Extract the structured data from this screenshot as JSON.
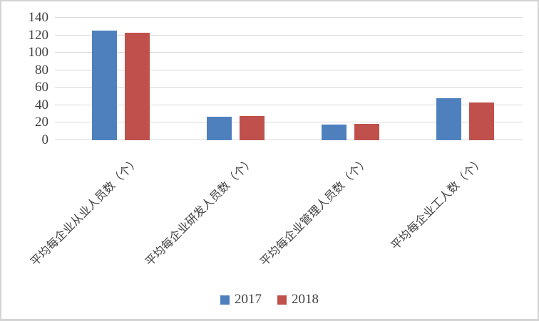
{
  "chart_data": {
    "type": "bar",
    "title": "",
    "xlabel": "",
    "ylabel": "",
    "categories": [
      "平均每企业从业人员数（个）",
      "平均每企业研发人员数（个）",
      "平均每企业管理人员数（个）",
      "平均每企业工人数（个）"
    ],
    "series": [
      {
        "name": "2017",
        "color": "#4E80BE",
        "values": [
          125,
          27,
          18,
          48
        ]
      },
      {
        "name": "2018",
        "color": "#BF504C",
        "values": [
          123,
          28,
          19,
          43
        ]
      }
    ],
    "ylim": [
      0,
      140
    ],
    "yticks": [
      0,
      20,
      40,
      60,
      80,
      100,
      120,
      140
    ],
    "grid": "horizontal",
    "gridline_color": "#D9D9D9",
    "legend_position": "bottom",
    "axis_text_color": "#3F3F3F",
    "category_label_rotation_deg": 45
  }
}
